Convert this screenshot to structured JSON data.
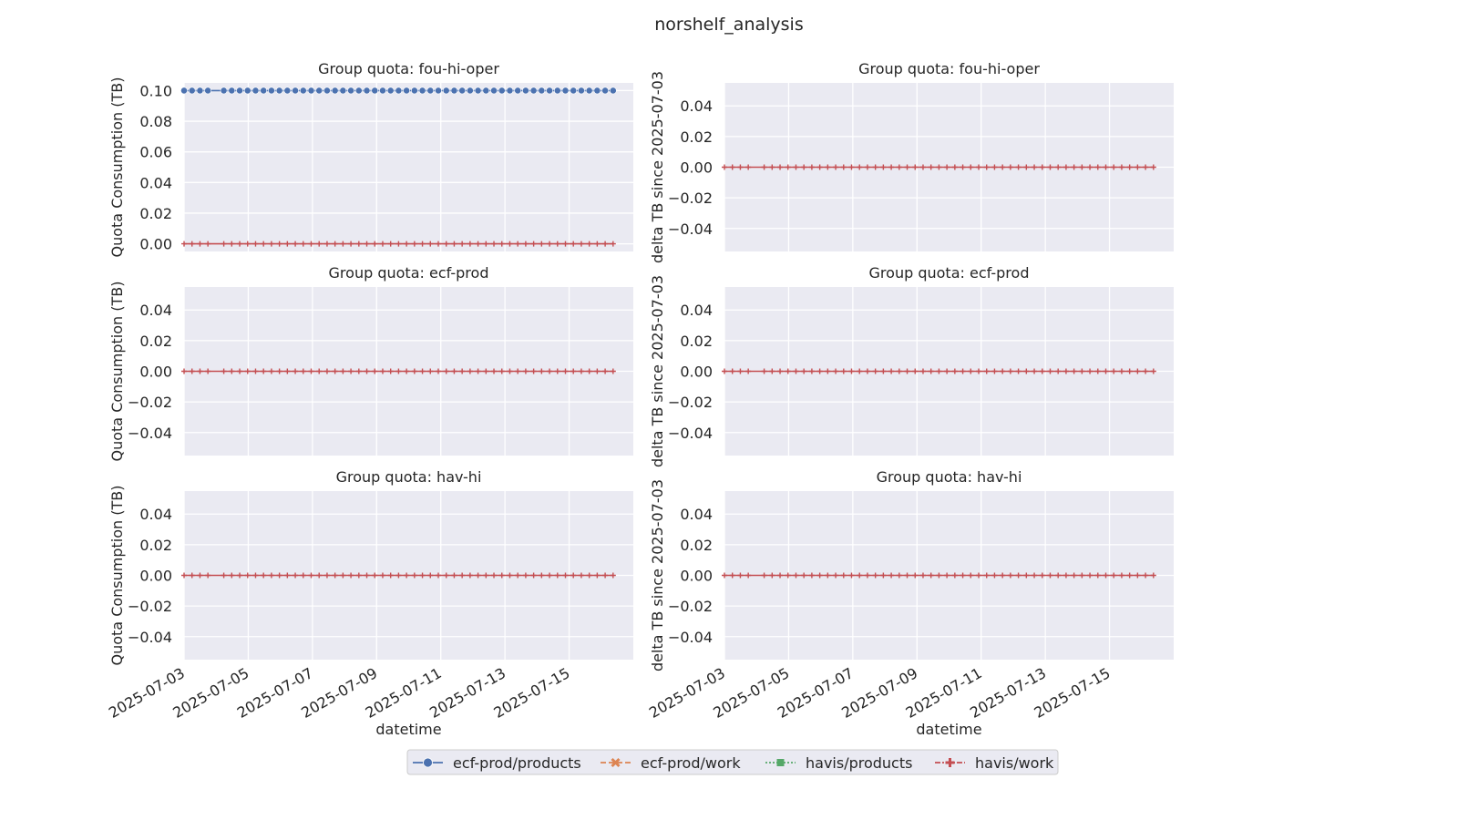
{
  "figure": {
    "title": "norshelf_analysis",
    "xlabel": "datetime",
    "x_ticks": [
      "2025-07-03",
      "2025-07-05",
      "2025-07-07",
      "2025-07-09",
      "2025-07-11",
      "2025-07-13",
      "2025-07-15"
    ],
    "x_range": [
      "2025-07-03",
      "2025-07-17"
    ],
    "colors": {
      "background": "#eaeaf2",
      "grid": "#ffffff",
      "ecf-prod/products": "#4c72b0",
      "ecf-prod/work": "#dd8452",
      "havis/products": "#55a868",
      "havis/work": "#c44e52"
    },
    "legend": {
      "position": "bottom-center",
      "entries": [
        {
          "label": "ecf-prod/products",
          "color": "#4c72b0",
          "marker": "circle",
          "dash": "solid"
        },
        {
          "label": "ecf-prod/work",
          "color": "#dd8452",
          "marker": "x",
          "dash": "dashed"
        },
        {
          "label": "havis/products",
          "color": "#55a868",
          "marker": "square",
          "dash": "dotted"
        },
        {
          "label": "havis/work",
          "color": "#c44e52",
          "marker": "plus",
          "dash": "dashdot"
        }
      ]
    }
  },
  "chart_data": [
    {
      "type": "line",
      "title": "Group quota: fou-hi-oper",
      "ylabel": "Quota Consumption (TB)",
      "ylim": [
        -0.005,
        0.105
      ],
      "yticks": [
        "0.00",
        "0.02",
        "0.04",
        "0.06",
        "0.08",
        "0.10"
      ],
      "ytick_values": [
        0,
        0.02,
        0.04,
        0.06,
        0.08,
        0.1
      ],
      "series": [
        {
          "name": "ecf-prod/products",
          "value": 0.1
        },
        {
          "name": "havis/work",
          "value": 0.0
        }
      ],
      "grid": true
    },
    {
      "type": "line",
      "title": "Group quota: fou-hi-oper",
      "ylabel": "delta TB since 2025-07-03",
      "ylim": [
        -0.055,
        0.055
      ],
      "yticks": [
        "0.04",
        "0.02",
        "0.00",
        "−0.02",
        "−0.04"
      ],
      "ytick_values": [
        0.04,
        0.02,
        0,
        -0.02,
        -0.04
      ],
      "series": [
        {
          "name": "havis/work",
          "value": 0.0
        }
      ],
      "grid": true
    },
    {
      "type": "line",
      "title": "Group quota: ecf-prod",
      "ylabel": "Quota Consumption (TB)",
      "ylim": [
        -0.055,
        0.055
      ],
      "yticks": [
        "0.04",
        "0.02",
        "0.00",
        "−0.02",
        "−0.04"
      ],
      "ytick_values": [
        0.04,
        0.02,
        0,
        -0.02,
        -0.04
      ],
      "series": [
        {
          "name": "havis/work",
          "value": 0.0
        }
      ],
      "grid": true
    },
    {
      "type": "line",
      "title": "Group quota: ecf-prod",
      "ylabel": "delta TB since 2025-07-03",
      "ylim": [
        -0.055,
        0.055
      ],
      "yticks": [
        "0.04",
        "0.02",
        "0.00",
        "−0.02",
        "−0.04"
      ],
      "ytick_values": [
        0.04,
        0.02,
        0,
        -0.02,
        -0.04
      ],
      "series": [
        {
          "name": "havis/work",
          "value": 0.0
        }
      ],
      "grid": true
    },
    {
      "type": "line",
      "title": "Group quota: hav-hi",
      "ylabel": "Quota Consumption (TB)",
      "ylim": [
        -0.055,
        0.055
      ],
      "yticks": [
        "0.04",
        "0.02",
        "0.00",
        "−0.02",
        "−0.04"
      ],
      "ytick_values": [
        0.04,
        0.02,
        0,
        -0.02,
        -0.04
      ],
      "series": [
        {
          "name": "havis/work",
          "value": 0.0
        }
      ],
      "grid": true
    },
    {
      "type": "line",
      "title": "Group quota: hav-hi",
      "ylabel": "delta TB since 2025-07-03",
      "ylim": [
        -0.055,
        0.055
      ],
      "yticks": [
        "0.04",
        "0.02",
        "0.00",
        "−0.02",
        "−0.04"
      ],
      "ytick_values": [
        0.04,
        0.02,
        0,
        -0.02,
        -0.04
      ],
      "series": [
        {
          "name": "havis/work",
          "value": 0.0
        }
      ],
      "grid": true
    }
  ]
}
